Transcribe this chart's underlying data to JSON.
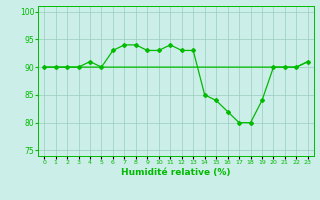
{
  "x": [
    0,
    1,
    2,
    3,
    4,
    5,
    6,
    7,
    8,
    9,
    10,
    11,
    12,
    13,
    14,
    15,
    16,
    17,
    18,
    19,
    20,
    21,
    22,
    23
  ],
  "y_varying": [
    90,
    90,
    90,
    90,
    91,
    90,
    93,
    94,
    94,
    93,
    93,
    94,
    93,
    93,
    85,
    84,
    82,
    80,
    80,
    84,
    90,
    90,
    90,
    91
  ],
  "y_flat": [
    90,
    90,
    90,
    90,
    90,
    90,
    90,
    90,
    90,
    90,
    90,
    90,
    90,
    90,
    90,
    90,
    90,
    90,
    90,
    90,
    90,
    90,
    90,
    91
  ],
  "line_color": "#00bb00",
  "bg_color": "#cceee8",
  "grid_color": "#99ccbb",
  "xlabel": "Humidité relative (%)",
  "xlim": [
    -0.5,
    23.5
  ],
  "ylim": [
    74,
    101
  ],
  "yticks": [
    75,
    80,
    85,
    90,
    95,
    100
  ],
  "xtick_labels": [
    "0",
    "1",
    "2",
    "3",
    "4",
    "5",
    "6",
    "7",
    "8",
    "9",
    "10",
    "11",
    "12",
    "13",
    "14",
    "15",
    "16",
    "17",
    "18",
    "19",
    "20",
    "21",
    "22",
    "23"
  ]
}
